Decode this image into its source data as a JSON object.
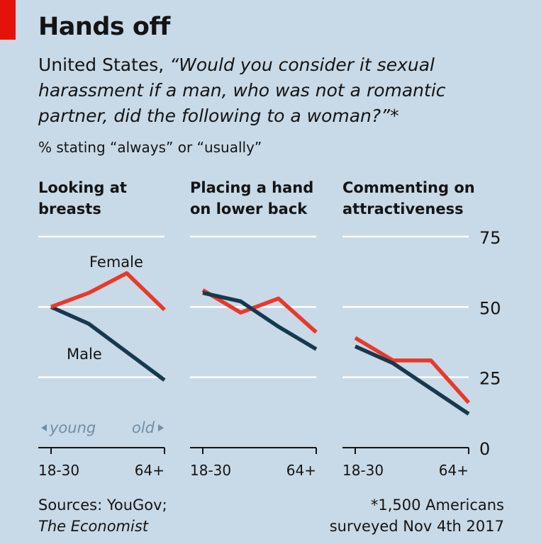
{
  "header": {
    "title": "Hands off",
    "subtitle_plain": "United States, ",
    "subtitle_quote": "“Would you consider it sexual harassment if a man, who was not a romantic partner, did the following to a woman?”",
    "subtitle_mark": "*",
    "unit_note": "% stating “always” or “usually”"
  },
  "footer": {
    "source_line1": "Sources: YouGov;",
    "source_line2": "The Economist",
    "note_line1": "*1,500 Americans",
    "note_line2": "surveyed Nov 4th 2017"
  },
  "colors": {
    "background": "#c8d9e7",
    "female": "#e8392a",
    "male": "#17394f",
    "grid": "#ffffff",
    "axis": "#141414",
    "age_arrow": "#6f8fa6",
    "accent": "#e3120b"
  },
  "chart_data": {
    "type": "line",
    "ylim": [
      0,
      75
    ],
    "y_ticks": [
      "0",
      "25",
      "50",
      "75"
    ],
    "x_tick_labels": [
      "18-30",
      "64+"
    ],
    "x": [
      1,
      2,
      3,
      4
    ],
    "age_annotation": {
      "left": "young",
      "right": "old"
    },
    "series_labels": {
      "female": "Female",
      "male": "Male"
    },
    "panels": [
      {
        "title": "Looking at breasts",
        "series": [
          {
            "name": "Female",
            "values": [
              50,
              55,
              62,
              49
            ]
          },
          {
            "name": "Male",
            "values": [
              50,
              44,
              34,
              24
            ]
          }
        ]
      },
      {
        "title": "Placing a hand on lower back",
        "series": [
          {
            "name": "Female",
            "values": [
              56,
              48,
              53,
              41
            ]
          },
          {
            "name": "Male",
            "values": [
              55,
              52,
              43,
              35
            ]
          }
        ]
      },
      {
        "title": "Commenting on attractiveness",
        "series": [
          {
            "name": "Female",
            "values": [
              39,
              31,
              31,
              16
            ]
          },
          {
            "name": "Male",
            "values": [
              36,
              30,
              21,
              12
            ]
          }
        ]
      }
    ]
  }
}
